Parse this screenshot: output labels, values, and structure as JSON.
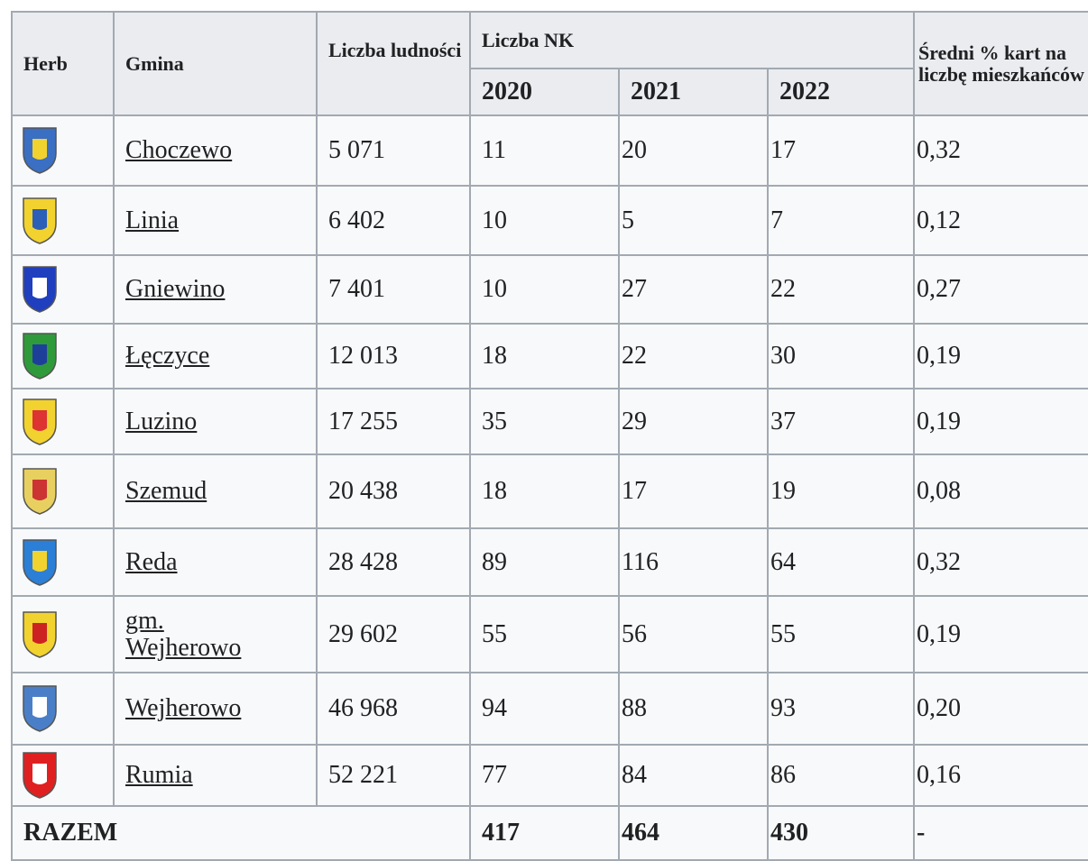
{
  "table": {
    "header": {
      "herb": "Herb",
      "gmina": "Gmina",
      "population": "Liczba ludności",
      "nk": "Liczba NK",
      "years": [
        "2020",
        "2021",
        "2022"
      ],
      "avg": "Średni % kart na liczbę mieszkańców"
    },
    "rows": [
      [
        "Choczewo",
        "5 071",
        11,
        20,
        17,
        "0,32"
      ],
      [
        "Linia",
        "6 402",
        10,
        5,
        7,
        "0,12"
      ],
      [
        "Gniewino",
        "7 401",
        10,
        27,
        22,
        "0,27"
      ],
      [
        "Łęczyce",
        "12 013",
        18,
        22,
        30,
        "0,19"
      ],
      [
        "Luzino",
        "17 255",
        35,
        29,
        37,
        "0,19"
      ],
      [
        "Szemud",
        "20 438",
        18,
        17,
        19,
        "0,08"
      ],
      [
        "Reda",
        "28 428",
        89,
        116,
        64,
        "0,32"
      ],
      [
        "gm. Wejherowo",
        "29 602",
        55,
        56,
        55,
        "0,19"
      ],
      [
        "Wejherowo",
        "46 968",
        94,
        88,
        93,
        "0,20"
      ],
      [
        "Rumia",
        "52 221",
        77,
        84,
        86,
        "0,16"
      ]
    ],
    "total": {
      "label": "RAZEM",
      "values": [
        417,
        464,
        430
      ],
      "avg": "-"
    }
  }
}
